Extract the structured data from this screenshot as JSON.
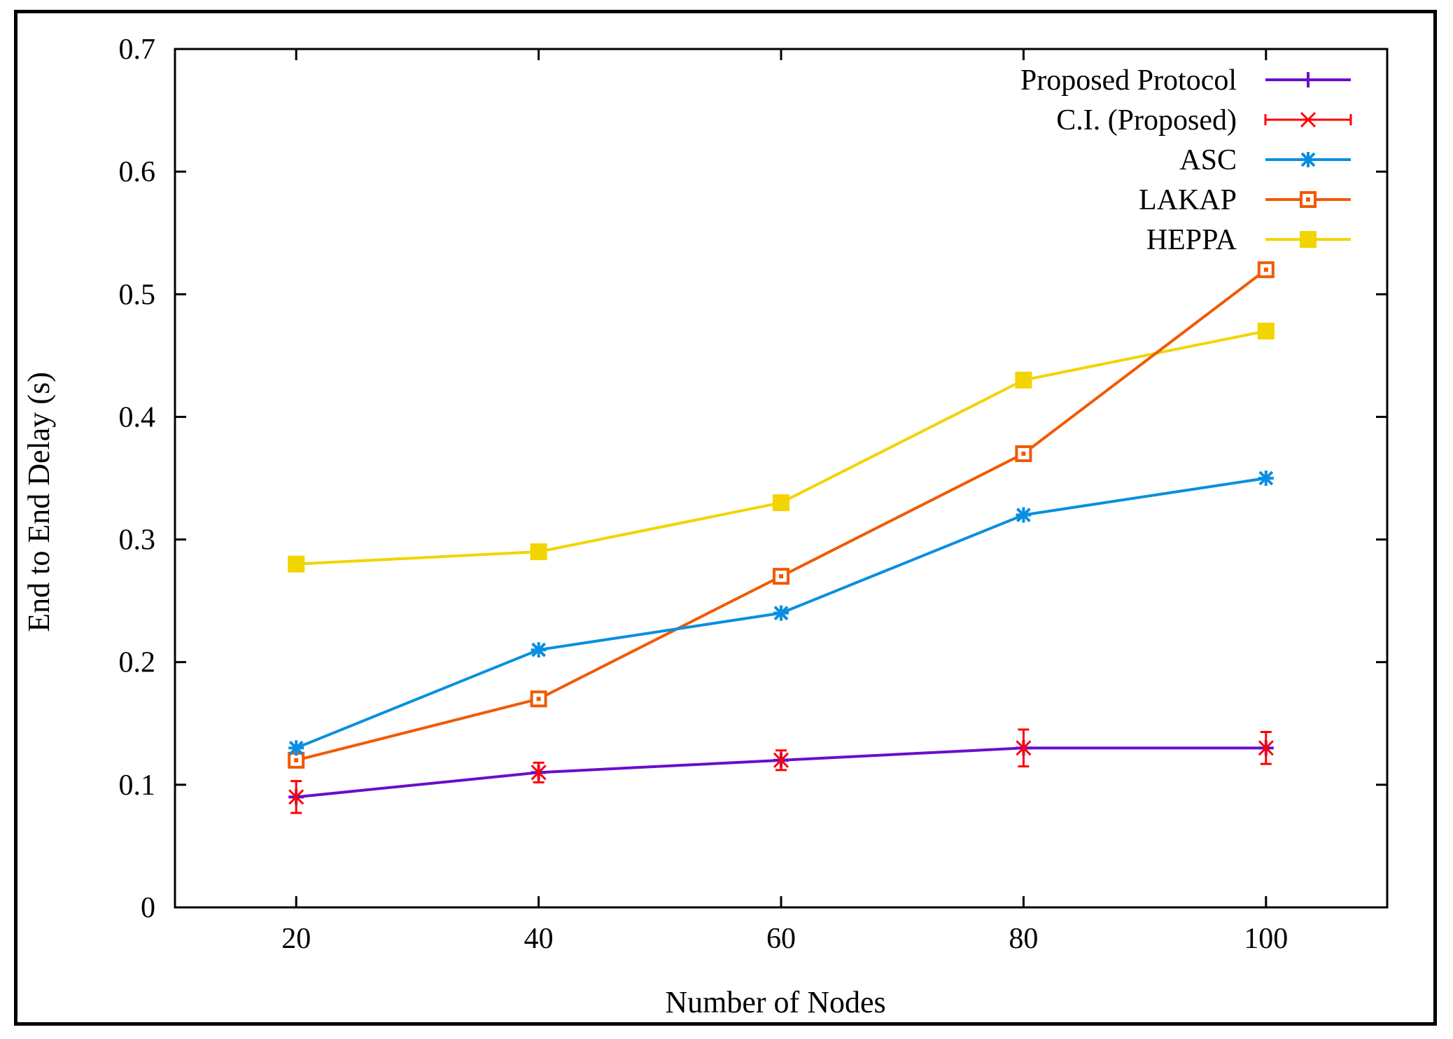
{
  "chart_data": {
    "type": "line",
    "title": "",
    "xlabel": "Number of Nodes",
    "ylabel": "End to End Delay (s)",
    "x": [
      20,
      40,
      60,
      80,
      100
    ],
    "xlim": [
      10,
      110
    ],
    "ylim": [
      0,
      0.7
    ],
    "xticks": [
      "20",
      "40",
      "60",
      "80",
      "100"
    ],
    "yticks": [
      "0",
      "0.1",
      "0.2",
      "0.3",
      "0.4",
      "0.5",
      "0.6",
      "0.7"
    ],
    "grid": false,
    "legend_position": "top-right",
    "series": [
      {
        "name": "Proposed Protocol",
        "marker": "plus",
        "color": "#6a0dcc",
        "values": [
          0.09,
          0.11,
          0.12,
          0.13,
          0.13
        ]
      },
      {
        "name": "C.I. (Proposed)",
        "marker": "x-errorbar",
        "color": "#ff0000",
        "values": [
          0.09,
          0.11,
          0.12,
          0.13,
          0.13
        ],
        "error": [
          0.013,
          0.008,
          0.008,
          0.015,
          0.013
        ]
      },
      {
        "name": "ASC",
        "marker": "star",
        "color": "#0a8fe0",
        "values": [
          0.13,
          0.21,
          0.24,
          0.32,
          0.35
        ]
      },
      {
        "name": "LAKAP",
        "marker": "open-square",
        "color": "#f05a00",
        "values": [
          0.12,
          0.17,
          0.27,
          0.37,
          0.52
        ]
      },
      {
        "name": "HEPPA",
        "marker": "filled-square",
        "color": "#f2d400",
        "values": [
          0.28,
          0.29,
          0.33,
          0.43,
          0.47
        ]
      }
    ]
  }
}
